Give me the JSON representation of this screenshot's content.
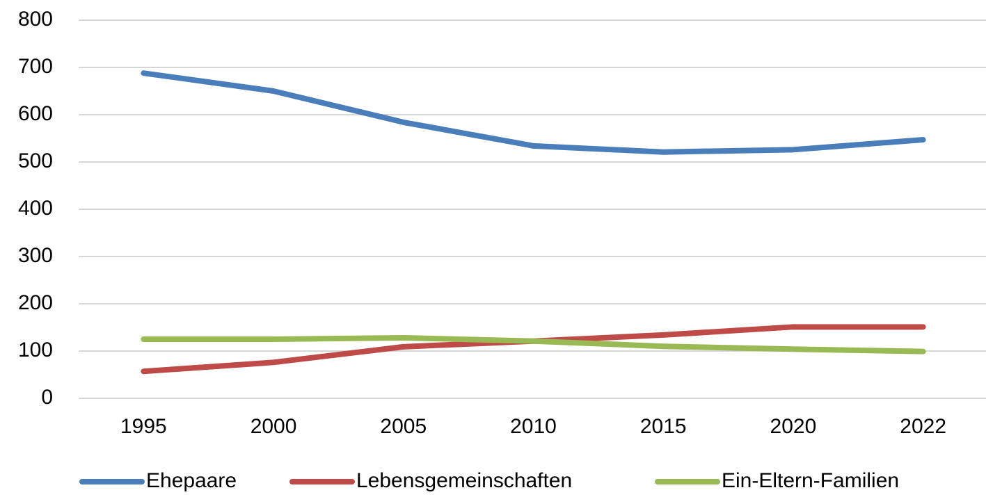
{
  "chart_data": {
    "type": "line",
    "categories": [
      "1995",
      "2000",
      "2005",
      "2010",
      "2015",
      "2020",
      "2022"
    ],
    "series": [
      {
        "name": "Ehepaare",
        "color": "#4a7ebb",
        "values": [
          688,
          650,
          584,
          534,
          521,
          526,
          547
        ]
      },
      {
        "name": "Lebensgemeinschaften",
        "color": "#be4b48",
        "values": [
          57,
          76,
          109,
          121,
          134,
          151,
          151
        ]
      },
      {
        "name": "Ein-Eltern-Familien",
        "color": "#98b954",
        "values": [
          125,
          125,
          128,
          121,
          110,
          104,
          99
        ]
      }
    ],
    "ylim": [
      0,
      800
    ],
    "yticks": [
      0,
      100,
      200,
      300,
      400,
      500,
      600,
      700,
      800
    ],
    "grid": true,
    "legend": "bottom"
  }
}
